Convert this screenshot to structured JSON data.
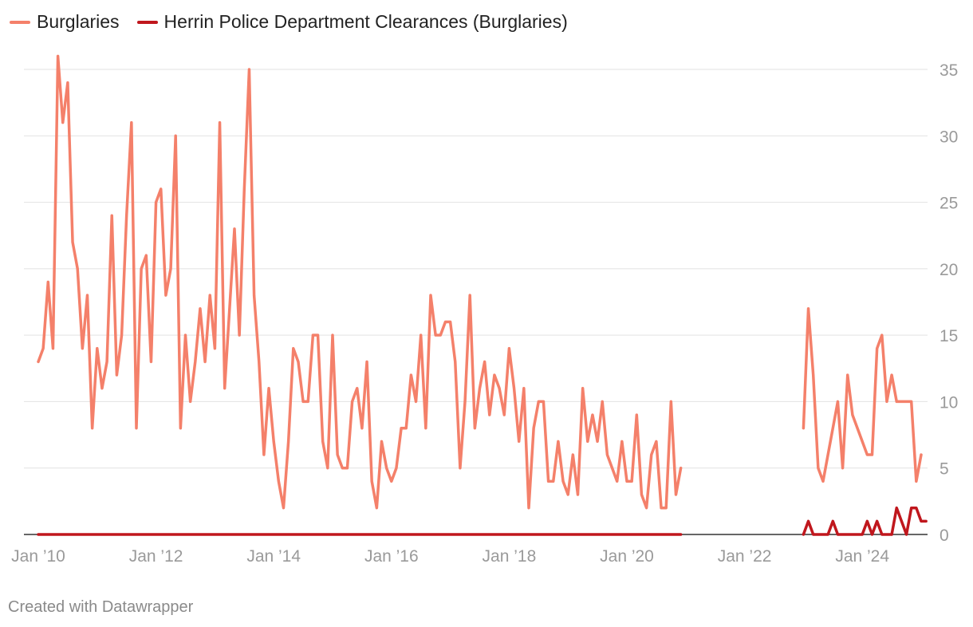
{
  "legend": [
    {
      "label": "Burglaries",
      "color": "#f4806a"
    },
    {
      "label": "Herrin Police Department Clearances (Burglaries)",
      "color": "#c0171d"
    }
  ],
  "footer": "Created with Datawrapper",
  "chart_data": {
    "type": "line",
    "title": "",
    "xlabel": "",
    "ylabel": "",
    "ylim": [
      0,
      35
    ],
    "yticks": [
      0,
      5,
      10,
      15,
      20,
      25,
      30,
      35
    ],
    "y_axis_side": "right",
    "grid": true,
    "legend_position": "top-left",
    "x_ticks": [
      {
        "label": "Jan ’10",
        "date": "2010-01"
      },
      {
        "label": "Jan ’12",
        "date": "2012-01"
      },
      {
        "label": "Jan ’14",
        "date": "2014-01"
      },
      {
        "label": "Jan ’16",
        "date": "2016-01"
      },
      {
        "label": "Jan ’18",
        "date": "2018-01"
      },
      {
        "label": "Jan ’20",
        "date": "2020-01"
      },
      {
        "label": "Jan ’22",
        "date": "2022-01"
      },
      {
        "label": "Jan ’24",
        "date": "2024-01"
      }
    ],
    "series": [
      {
        "name": "Burglaries",
        "color": "#f4806a",
        "segments": [
          {
            "start": "2010-01",
            "values": [
              13,
              14,
              19,
              14,
              36,
              31,
              34,
              22,
              20,
              14,
              18,
              8,
              14,
              11,
              13,
              24,
              12,
              15,
              24,
              31,
              8,
              20,
              21,
              13,
              25,
              26,
              18,
              20,
              30,
              8,
              15,
              10,
              13,
              17,
              13,
              18,
              14,
              31,
              11,
              17,
              23,
              15,
              26,
              35,
              18,
              13,
              6,
              11,
              7,
              4,
              2,
              7,
              14,
              13,
              10,
              10,
              15,
              15,
              7,
              5,
              15,
              6,
              5,
              5,
              10,
              11,
              8,
              13,
              4,
              2,
              7,
              5,
              4,
              5,
              8,
              8,
              12,
              10,
              15,
              8,
              18,
              15,
              15,
              16,
              16,
              13,
              5,
              10,
              18,
              8,
              11,
              13,
              9,
              12,
              11,
              9,
              14,
              11,
              7,
              11,
              2,
              8,
              10,
              10,
              4,
              4,
              7,
              4,
              3,
              6,
              3,
              11,
              7,
              9,
              7,
              10,
              6,
              5,
              4,
              7,
              4,
              4,
              9,
              3,
              2,
              6,
              7,
              2,
              2,
              10,
              3,
              5
            ]
          },
          {
            "start": "2023-01",
            "values": [
              8,
              17,
              12,
              5,
              4,
              6,
              8,
              10,
              5,
              12,
              9,
              8,
              7,
              6,
              6,
              14,
              15,
              10,
              12,
              10,
              10,
              10,
              10,
              4,
              6
            ]
          }
        ]
      },
      {
        "name": "Herrin Police Department Clearances (Burglaries)",
        "color": "#c0171d",
        "segments": [
          {
            "start": "2010-01",
            "values": [
              0,
              0,
              0,
              0,
              0,
              0,
              0,
              0,
              0,
              0,
              0,
              0,
              0,
              0,
              0,
              0,
              0,
              0,
              0,
              0,
              0,
              0,
              0,
              0,
              0,
              0,
              0,
              0,
              0,
              0,
              0,
              0,
              0,
              0,
              0,
              0,
              0,
              0,
              0,
              0,
              0,
              0,
              0,
              0,
              0,
              0,
              0,
              0,
              0,
              0,
              0,
              0,
              0,
              0,
              0,
              0,
              0,
              0,
              0,
              0,
              0,
              0,
              0,
              0,
              0,
              0,
              0,
              0,
              0,
              0,
              0,
              0,
              0,
              0,
              0,
              0,
              0,
              0,
              0,
              0,
              0,
              0,
              0,
              0,
              0,
              0,
              0,
              0,
              0,
              0,
              0,
              0,
              0,
              0,
              0,
              0,
              0,
              0,
              0,
              0,
              0,
              0,
              0,
              0,
              0,
              0,
              0,
              0,
              0,
              0,
              0,
              0,
              0,
              0,
              0,
              0,
              0,
              0,
              0,
              0,
              0,
              0,
              0,
              0,
              0,
              0,
              0,
              0,
              0,
              0,
              0,
              0
            ]
          },
          {
            "start": "2023-01",
            "values": [
              0,
              1,
              0,
              0,
              0,
              0,
              1,
              0,
              0,
              0,
              0,
              0,
              0,
              1,
              0,
              1,
              0,
              0,
              0,
              2,
              1,
              0,
              2,
              2,
              1,
              1
            ]
          }
        ]
      }
    ]
  }
}
